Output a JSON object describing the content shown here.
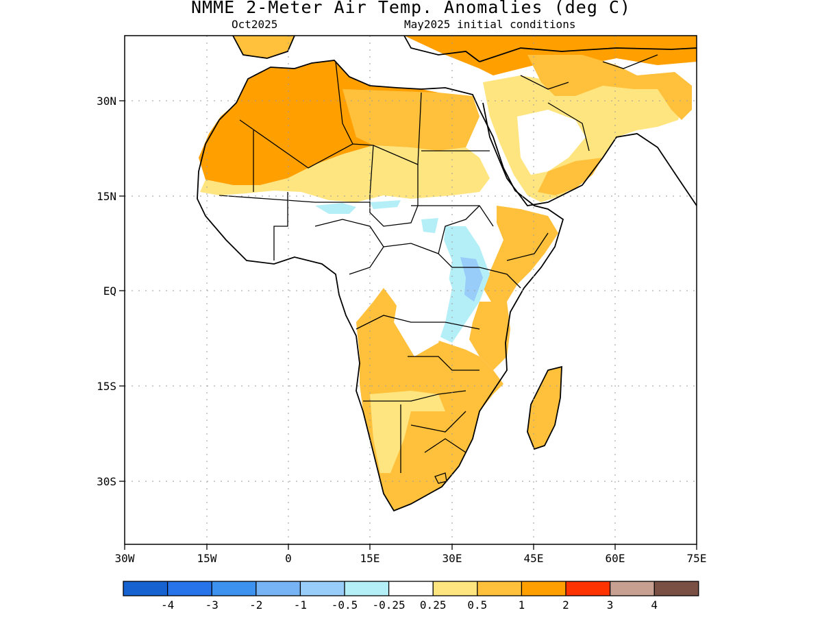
{
  "title": "NMME 2-Meter Air Temp. Anomalies (deg C)",
  "subtitle_left": "Oct2025",
  "subtitle_right": "May2025 initial conditions",
  "colors": {
    "neg4": "#1662d0",
    "neg3": "#2673ea",
    "neg2": "#3d92f0",
    "neg1": "#76b4f6",
    "neg05": "#97cdf8",
    "neg025": "#b4eff8",
    "neutral": "#ffffff",
    "pos025": "#ffe580",
    "pos05": "#ffc03c",
    "pos1": "#ff9f00",
    "pos2": "#ff3300",
    "pos3": "#c8a092",
    "pos4": "#7b5044"
  },
  "x_axis": {
    "ticks": [
      "30W",
      "15W",
      "0",
      "15E",
      "30E",
      "45E",
      "60E",
      "75E"
    ]
  },
  "y_axis": {
    "ticks": [
      "30N",
      "15N",
      "EQ",
      "15S",
      "30S"
    ]
  },
  "colorbar": {
    "labels": [
      "-4",
      "-3",
      "-2",
      "-1",
      "-0.5",
      "-0.25",
      "0.25",
      "0.5",
      "1",
      "2",
      "3",
      "4"
    ]
  }
}
